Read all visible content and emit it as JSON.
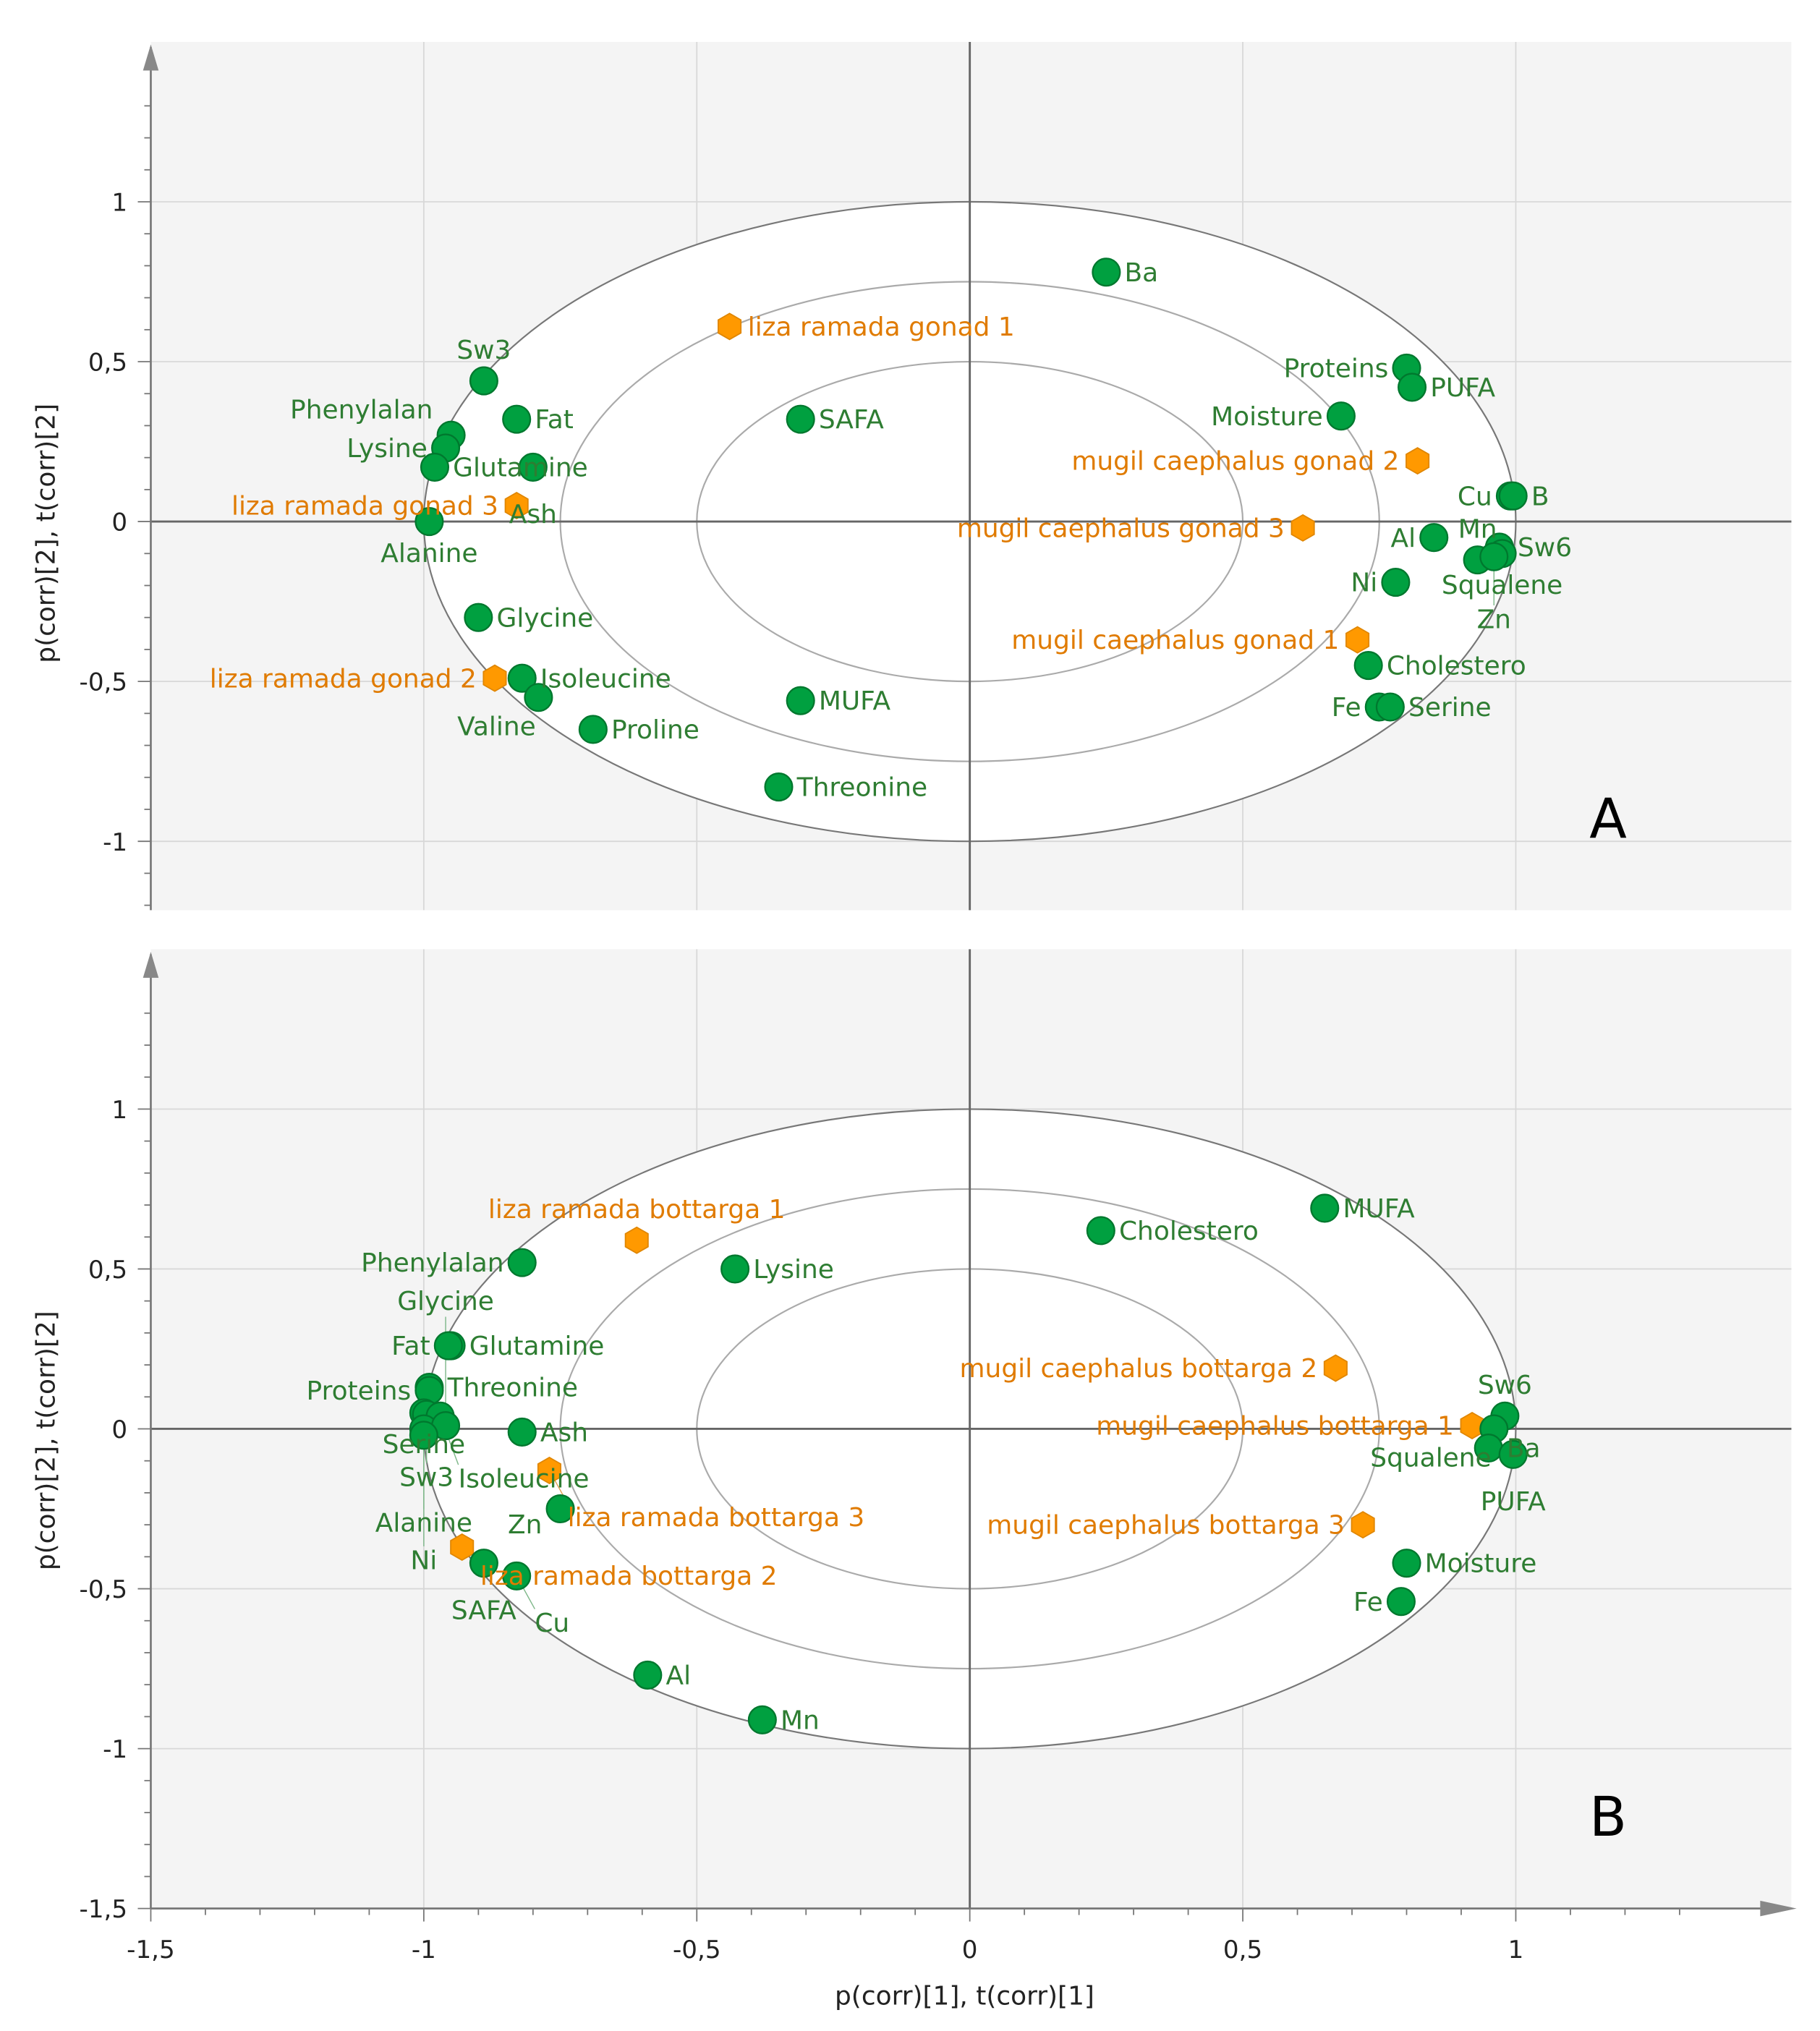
{
  "chart_data": [
    {
      "type": "scatter",
      "panel_label": "A",
      "xlabel": "p(corr)[1], t(corr)[1]",
      "ylabel": "p(corr)[2], t(corr)[2]",
      "xlim": [
        -1.5,
        1.5
      ],
      "ylim": [
        -1.215,
        1.5
      ],
      "xticks": [
        "-1,5",
        "-1",
        "-0,5",
        "0",
        "0,5",
        "1"
      ],
      "yticks": [
        {
          "v": 1,
          "t": "1"
        },
        {
          "v": 0.5,
          "t": "0,5"
        },
        {
          "v": 0,
          "t": "0"
        },
        {
          "v": -0.5,
          "t": "-0,5"
        },
        {
          "v": -1,
          "t": "-1"
        }
      ],
      "ellipses": [
        1,
        0.75,
        0.5
      ],
      "grid": true,
      "colors": {
        "variable": "#00a040",
        "sample": "#ff9900"
      },
      "points": [
        {
          "name": "Ba",
          "x": 0.25,
          "y": 0.78,
          "kind": "variable",
          "side": "right"
        },
        {
          "name": "liza ramada gonad 1",
          "x": -0.44,
          "y": 0.61,
          "kind": "sample",
          "side": "right"
        },
        {
          "name": "Sw3",
          "x": -0.89,
          "y": 0.44,
          "kind": "variable",
          "side": "above"
        },
        {
          "name": "Fat",
          "x": -0.83,
          "y": 0.32,
          "kind": "variable",
          "side": "right"
        },
        {
          "name": "SAFA",
          "x": -0.31,
          "y": 0.32,
          "kind": "variable",
          "side": "right"
        },
        {
          "name": "Phenylalan",
          "x": -0.95,
          "y": 0.27,
          "kind": "variable",
          "side": "left-up"
        },
        {
          "name": "Lysine",
          "x": -0.96,
          "y": 0.23,
          "kind": "variable",
          "side": "left"
        },
        {
          "name": "Glutamine",
          "x": -0.98,
          "y": 0.17,
          "kind": "variable",
          "side": "left"
        },
        {
          "name": "Ash",
          "x": -0.8,
          "y": 0.17,
          "kind": "variable",
          "side": "right"
        },
        {
          "name": "liza ramada gonad 3",
          "x": -0.83,
          "y": 0.05,
          "kind": "sample",
          "side": "below-right"
        },
        {
          "name": "Alanine",
          "x": -0.99,
          "y": 0.0,
          "kind": "variable",
          "side": "left"
        },
        {
          "name": "Proteins",
          "x": 0.8,
          "y": 0.48,
          "kind": "variable",
          "side": "left"
        },
        {
          "name": "PUFA",
          "x": 0.81,
          "y": 0.42,
          "kind": "variable",
          "side": "right"
        },
        {
          "name": "Moisture",
          "x": 0.68,
          "y": 0.33,
          "kind": "variable",
          "side": "left"
        },
        {
          "name": "mugil caephalus gonad 2",
          "x": 0.82,
          "y": 0.19,
          "kind": "sample",
          "side": "left"
        },
        {
          "name": "mugil caephalus gonad 3",
          "x": 0.61,
          "y": -0.02,
          "kind": "sample",
          "side": "left"
        },
        {
          "name": "Cu",
          "x": 0.99,
          "y": 0.08,
          "kind": "variable",
          "side": "left"
        },
        {
          "name": "B",
          "x": 0.995,
          "y": 0.08,
          "kind": "variable",
          "side": "right"
        },
        {
          "name": "Al",
          "x": 0.85,
          "y": -0.05,
          "kind": "variable",
          "side": "left"
        },
        {
          "name": "Sw6",
          "x": 0.97,
          "y": -0.08,
          "kind": "variable",
          "side": "right"
        },
        {
          "name": "Squalene",
          "x": 0.975,
          "y": -0.1,
          "kind": "variable",
          "side": "right"
        },
        {
          "name": "Mn",
          "x": 0.93,
          "y": -0.12,
          "kind": "variable",
          "side": "below-left"
        },
        {
          "name": "Zn",
          "x": 0.96,
          "y": -0.11,
          "kind": "variable",
          "side": "below"
        },
        {
          "name": "Ni",
          "x": 0.78,
          "y": -0.19,
          "kind": "variable",
          "side": "left"
        },
        {
          "name": "Glycine",
          "x": -0.9,
          "y": -0.3,
          "kind": "variable",
          "side": "right"
        },
        {
          "name": "mugil caephalus gonad 1",
          "x": 0.71,
          "y": -0.37,
          "kind": "sample",
          "side": "left"
        },
        {
          "name": "Cholestero",
          "x": 0.73,
          "y": -0.45,
          "kind": "variable",
          "side": "right"
        },
        {
          "name": "liza ramada gonad 2",
          "x": -0.87,
          "y": -0.49,
          "kind": "sample",
          "side": "left"
        },
        {
          "name": "Isoleucine",
          "x": -0.82,
          "y": -0.49,
          "kind": "variable",
          "side": "right"
        },
        {
          "name": "Valine",
          "x": -0.79,
          "y": -0.55,
          "kind": "variable",
          "side": "below-left"
        },
        {
          "name": "MUFA",
          "x": -0.31,
          "y": -0.56,
          "kind": "variable",
          "side": "right"
        },
        {
          "name": "Proline",
          "x": -0.69,
          "y": -0.65,
          "kind": "variable",
          "side": "right"
        },
        {
          "name": "Fe",
          "x": 0.75,
          "y": -0.58,
          "kind": "variable",
          "side": "left"
        },
        {
          "name": "Serine",
          "x": 0.77,
          "y": -0.58,
          "kind": "variable",
          "side": "right"
        },
        {
          "name": "Threonine",
          "x": -0.35,
          "y": -0.83,
          "kind": "variable",
          "side": "right"
        }
      ]
    },
    {
      "type": "scatter",
      "panel_label": "B",
      "xlabel": "p(corr)[1], t(corr)[1]",
      "ylabel": "p(corr)[2], t(corr)[2]",
      "xlim": [
        -1.5,
        1.5
      ],
      "ylim": [
        -1.5,
        1.5
      ],
      "xticks": [
        "-1,5",
        "-1",
        "-0,5",
        "0",
        "0,5",
        "1"
      ],
      "yticks": [
        {
          "v": 1,
          "t": "1"
        },
        {
          "v": 0.5,
          "t": "0,5"
        },
        {
          "v": 0,
          "t": "0"
        },
        {
          "v": -0.5,
          "t": "-0,5"
        },
        {
          "v": -1,
          "t": "-1"
        },
        {
          "v": -1.5,
          "t": "-1,5"
        }
      ],
      "ellipses": [
        1,
        0.75,
        0.5
      ],
      "grid": true,
      "colors": {
        "variable": "#00a040",
        "sample": "#ff9900"
      },
      "points": [
        {
          "name": "liza ramada bottarga 1",
          "x": -0.61,
          "y": 0.59,
          "kind": "sample",
          "side": "above"
        },
        {
          "name": "Phenylalan",
          "x": -0.82,
          "y": 0.52,
          "kind": "variable",
          "side": "left"
        },
        {
          "name": "Lysine",
          "x": -0.43,
          "y": 0.5,
          "kind": "variable",
          "side": "right"
        },
        {
          "name": "Cholestero",
          "x": 0.24,
          "y": 0.62,
          "kind": "variable",
          "side": "right"
        },
        {
          "name": "MUFA",
          "x": 0.65,
          "y": 0.69,
          "kind": "variable",
          "side": "right"
        },
        {
          "name": "Glutamine",
          "x": -0.95,
          "y": 0.26,
          "kind": "variable",
          "side": "right"
        },
        {
          "name": "Fat",
          "x": -0.955,
          "y": 0.26,
          "kind": "variable",
          "side": "left"
        },
        {
          "name": "Threonine",
          "x": -0.99,
          "y": 0.13,
          "kind": "variable",
          "side": "left-up"
        },
        {
          "name": "Proteins",
          "x": -0.99,
          "y": 0.12,
          "kind": "variable",
          "side": "left"
        },
        {
          "name": "Serine",
          "x": -1.0,
          "y": 0.05,
          "kind": "variable",
          "side": "left"
        },
        {
          "name": "Sw3",
          "x": -0.995,
          "y": 0.045,
          "kind": "variable",
          "side": "left"
        },
        {
          "name": "Isoleucine",
          "x": -0.97,
          "y": 0.04,
          "kind": "variable",
          "side": "right"
        },
        {
          "name": "Alanine",
          "x": -1.0,
          "y": 0.0,
          "kind": "variable",
          "side": "left"
        },
        {
          "name": "Glycine",
          "x": -0.96,
          "y": 0.01,
          "kind": "variable",
          "side": "right"
        },
        {
          "name": "Ni",
          "x": -1.0,
          "y": -0.02,
          "kind": "variable",
          "side": "below"
        },
        {
          "name": "Ash",
          "x": -0.82,
          "y": -0.01,
          "kind": "variable",
          "side": "below-left"
        },
        {
          "name": "mugil caephalus bottarga 2",
          "x": 0.67,
          "y": 0.19,
          "kind": "sample",
          "side": "left"
        },
        {
          "name": "mugil caephalus bottarga 1",
          "x": 0.92,
          "y": 0.01,
          "kind": "sample",
          "side": "left"
        },
        {
          "name": "Sw6",
          "x": 0.98,
          "y": 0.04,
          "kind": "variable",
          "side": "above"
        },
        {
          "name": "Squalene",
          "x": 0.96,
          "y": 0.0,
          "kind": "variable",
          "side": "below-left"
        },
        {
          "name": "Ba",
          "x": 0.95,
          "y": -0.06,
          "kind": "variable",
          "side": "below"
        },
        {
          "name": "PUFA",
          "x": 0.995,
          "y": -0.08,
          "kind": "variable",
          "side": "right"
        },
        {
          "name": "liza ramada bottarga 3",
          "x": -0.77,
          "y": -0.13,
          "kind": "sample",
          "side": "right"
        },
        {
          "name": "Zn",
          "x": -0.75,
          "y": -0.25,
          "kind": "variable",
          "side": "right"
        },
        {
          "name": "mugil caephalus bottarga 3",
          "x": 0.72,
          "y": -0.3,
          "kind": "sample",
          "side": "left"
        },
        {
          "name": "liza ramada bottarga 2",
          "x": -0.93,
          "y": -0.37,
          "kind": "sample",
          "side": "below-right"
        },
        {
          "name": "SAFA",
          "x": -0.89,
          "y": -0.42,
          "kind": "variable",
          "side": "above"
        },
        {
          "name": "Cu",
          "x": -0.83,
          "y": -0.46,
          "kind": "variable",
          "side": "right"
        },
        {
          "name": "Moisture",
          "x": 0.8,
          "y": -0.42,
          "kind": "variable",
          "side": "right"
        },
        {
          "name": "Fe",
          "x": 0.79,
          "y": -0.54,
          "kind": "variable",
          "side": "left"
        },
        {
          "name": "Al",
          "x": -0.59,
          "y": -0.77,
          "kind": "variable",
          "side": "right"
        },
        {
          "name": "Mn",
          "x": -0.38,
          "y": -0.91,
          "kind": "variable",
          "side": "right"
        }
      ]
    }
  ]
}
